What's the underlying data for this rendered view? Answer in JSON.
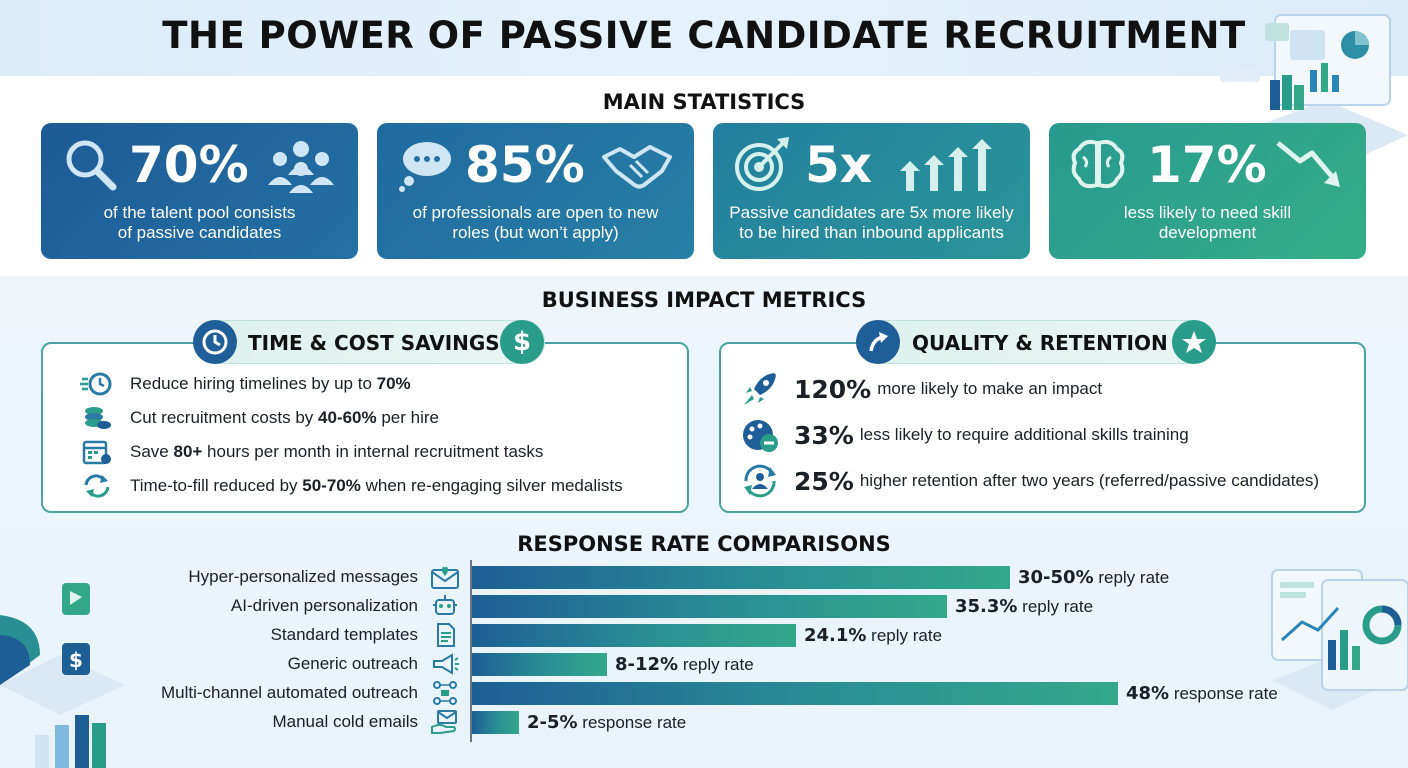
{
  "title": "THE POWER OF PASSIVE CANDIDATE RECRUITMENT",
  "main_statistics": {
    "heading": "MAIN STATISTICS",
    "cards": [
      {
        "value": "70%",
        "desc_line1": "of the talent pool consists",
        "desc_line2": "of passive candidates",
        "icon": "magnifier-icon",
        "deco": "people-group-icon",
        "color": "#1f5e97"
      },
      {
        "value": "85%",
        "desc_line1": "of professionals are open to new",
        "desc_line2": "roles (but won’t apply)",
        "icon": "thought-bubble-icon",
        "deco": "handshake-icon",
        "color": "#22709e"
      },
      {
        "value": "5x",
        "desc_line1": "Passive candidates are 5x more likely",
        "desc_line2": "to be hired than inbound applicants",
        "icon": "target-icon",
        "deco": "rising-arrows-icon",
        "color": "#25869a"
      },
      {
        "value": "17%",
        "desc_line1": "less likely to need skill",
        "desc_line2": "development",
        "icon": "brain-icon",
        "deco": "down-trend-icon",
        "color": "#2a9d8a"
      }
    ]
  },
  "business_impact": {
    "heading": "BUSINESS IMPACT METRICS",
    "time_cost": {
      "label": "TIME & COST SAVINGS",
      "items": [
        {
          "pre": "Reduce hiring timelines by up to ",
          "bold": "70%",
          "post": "",
          "icon": "fast-clock-icon"
        },
        {
          "pre": "Cut recruitment costs by ",
          "bold": "40-60%",
          "post": " per hire",
          "icon": "coin-stack-icon"
        },
        {
          "pre": "Save ",
          "bold": "80+",
          "post": " hours per month in internal recruitment tasks",
          "icon": "calendar-icon"
        },
        {
          "pre": "Time-to-fill reduced by ",
          "bold": "50-70%",
          "post": " when re-engaging silver medalists",
          "icon": "refresh-icon"
        }
      ]
    },
    "quality_retention": {
      "label": "QUALITY & RETENTION",
      "items": [
        {
          "value": "120%",
          "text": "more likely to make an impact",
          "icon": "rocket-icon"
        },
        {
          "value": "33%",
          "text": "less likely to require additional skills training",
          "icon": "palette-minus-icon"
        },
        {
          "value": "25%",
          "text": "higher retention after two years (referred/passive candidates)",
          "icon": "user-cycle-icon"
        }
      ]
    }
  },
  "response_rates": {
    "heading": "RESPONSE RATE COMPARISONS",
    "rows": [
      {
        "label": "Hyper-personalized messages",
        "value": "30-50%",
        "suffix": " reply rate",
        "bar_fraction": 0.4,
        "icon": "envelope-heart-icon"
      },
      {
        "label": "AI-driven personalization",
        "value": "35.3%",
        "suffix": " reply rate",
        "bar_fraction": 0.353,
        "icon": "robot-icon"
      },
      {
        "label": "Standard templates",
        "value": "24.1%",
        "suffix": " reply rate",
        "bar_fraction": 0.241,
        "icon": "document-icon"
      },
      {
        "label": "Generic outreach",
        "value": "8-12%",
        "suffix": " reply rate",
        "bar_fraction": 0.1,
        "icon": "megaphone-icon"
      },
      {
        "label": "Multi-channel automated outreach",
        "value": "48%",
        "suffix": " response rate",
        "bar_fraction": 0.48,
        "icon": "network-icon"
      },
      {
        "label": "Manual cold emails",
        "value": "2-5%",
        "suffix": " response rate",
        "bar_fraction": 0.035,
        "icon": "hand-envelope-icon"
      }
    ]
  }
}
